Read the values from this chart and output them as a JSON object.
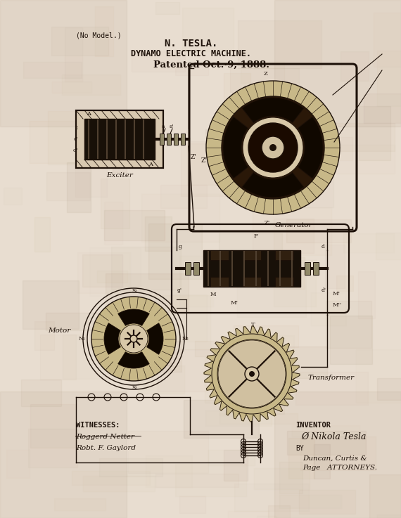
{
  "bg_color": "#e8ddd0",
  "ink_color": "#1c1008",
  "title_line1": "N. TESLA.",
  "title_line2": "DYNAMO ELECTRIC MACHINE.",
  "title_line3": "Patented Oct.·9, 1888.",
  "no_model": "(No Model.)",
  "witnesses_label": "WITNESSES:",
  "witness1": "Roggerd Netter",
  "witness2": "Robt. F. Gaylord",
  "inventor_label": "INVENTOR",
  "inventor_name": "Ø Nikola Tesla",
  "by_label": "BY",
  "attorneys": "Duncan, Curtis &",
  "page_line": "Page   ATTORNEYS.",
  "exciter_label": "Exciter",
  "generator_label": "Generator",
  "motor_label": "Motor",
  "transformer_label": "Transformer",
  "fig_width": 5.7,
  "fig_height": 7.37,
  "dpi": 100
}
